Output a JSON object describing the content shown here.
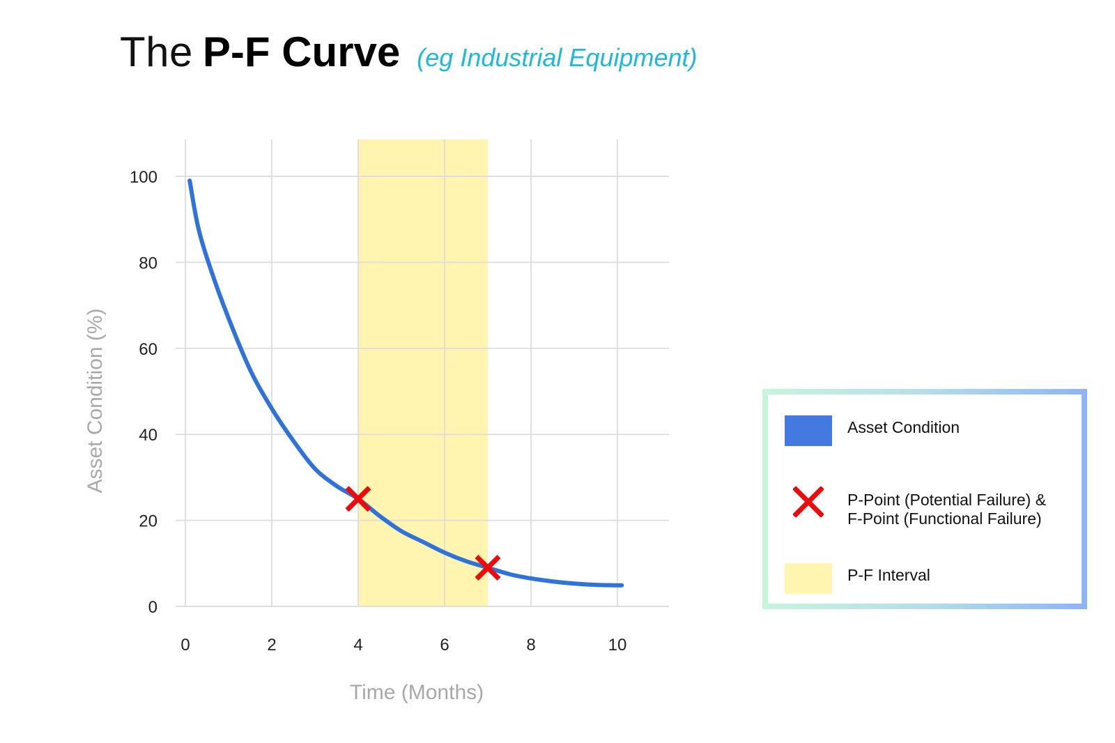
{
  "title": {
    "prefix": "The",
    "bold": "P-F Curve",
    "subtitle": "(eg Industrial Equipment)"
  },
  "chart_data": {
    "type": "line",
    "title": "The P-F Curve",
    "xlabel": "Time (Months)",
    "ylabel": "Asset Condition (%)",
    "xlim": [
      0,
      11.2
    ],
    "ylim": [
      0,
      108
    ],
    "x_ticks": [
      "0",
      "2",
      "4",
      "6",
      "8",
      "10"
    ],
    "y_ticks": [
      "0",
      "20",
      "40",
      "60",
      "80",
      "100"
    ],
    "grid": true,
    "series": [
      {
        "name": "Asset Condition",
        "color": "#2f72d9",
        "x": [
          0.1,
          0.3,
          0.6,
          1.0,
          1.5,
          2.0,
          2.5,
          3.0,
          3.5,
          4.0,
          4.5,
          5.0,
          5.5,
          6.0,
          6.5,
          7.0,
          7.5,
          8.0,
          8.5,
          9.0,
          9.5,
          10.0,
          10.1
        ],
        "y": [
          99,
          88,
          78,
          67,
          55,
          46,
          38.5,
          32,
          28,
          25,
          21,
          17.5,
          15,
          12.5,
          10.5,
          9,
          7.5,
          6.5,
          5.8,
          5.3,
          5,
          4.9,
          4.9
        ]
      }
    ],
    "markers": {
      "name": "P-Point (Potential Failure) & F-Point (Functional Failure)",
      "color": "#ee0a0a",
      "points": [
        {
          "x": 4.0,
          "y": 25
        },
        {
          "x": 7.0,
          "y": 9
        }
      ]
    },
    "interval": {
      "name": "P-F Interval",
      "color": "#fff4b0",
      "x_start": 4,
      "x_end": 7
    },
    "legend": {
      "placement": "right",
      "entries": [
        {
          "label": "Asset Condition",
          "swatch": "bar",
          "color": "#4479e0"
        },
        {
          "label_line1": "P-Point (Potential Failure) &",
          "label_line2": "F-Point (Functional Failure)",
          "swatch": "cross",
          "color": "#ee0a0a"
        },
        {
          "label": "P-F Interval",
          "swatch": "bar",
          "color": "#fff4b0"
        }
      ]
    }
  }
}
